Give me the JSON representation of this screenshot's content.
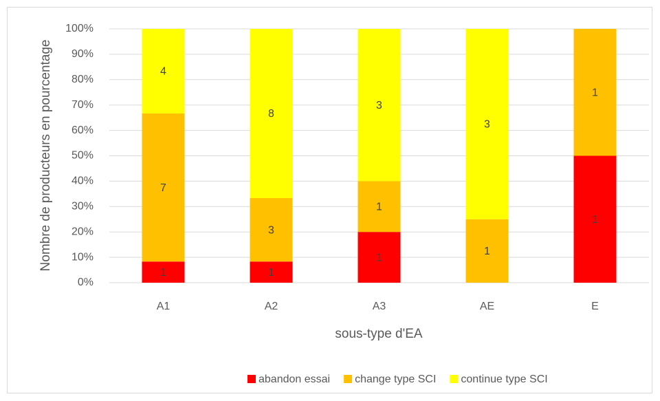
{
  "chart_data": {
    "type": "bar",
    "stacking": "percent",
    "categories": [
      "A1",
      "A2",
      "A3",
      "AE",
      "E"
    ],
    "series": [
      {
        "name": "abandon essai",
        "color": "#ff0000",
        "values": [
          1,
          1,
          1,
          null,
          1
        ]
      },
      {
        "name": "change type SCI",
        "color": "#ffc000",
        "values": [
          7,
          3,
          1,
          1,
          1
        ]
      },
      {
        "name": "continue type SCI",
        "color": "#ffff00",
        "values": [
          4,
          8,
          3,
          3,
          null
        ]
      }
    ],
    "x_label": "sous-type d'EA",
    "y_label": "Nombre de producteurs en pourcentage",
    "ylim": [
      0,
      100
    ],
    "yticks": [
      {
        "value": 0,
        "label": "0%"
      },
      {
        "value": 10,
        "label": "10%"
      },
      {
        "value": 20,
        "label": "20%"
      },
      {
        "value": 30,
        "label": "30%"
      },
      {
        "value": 40,
        "label": "40%"
      },
      {
        "value": 50,
        "label": "50%"
      },
      {
        "value": 60,
        "label": "60%"
      },
      {
        "value": 70,
        "label": "70%"
      },
      {
        "value": 80,
        "label": "80%"
      },
      {
        "value": 90,
        "label": "90%"
      },
      {
        "value": 100,
        "label": "100%"
      }
    ],
    "grid": true,
    "legend": "bottom"
  }
}
